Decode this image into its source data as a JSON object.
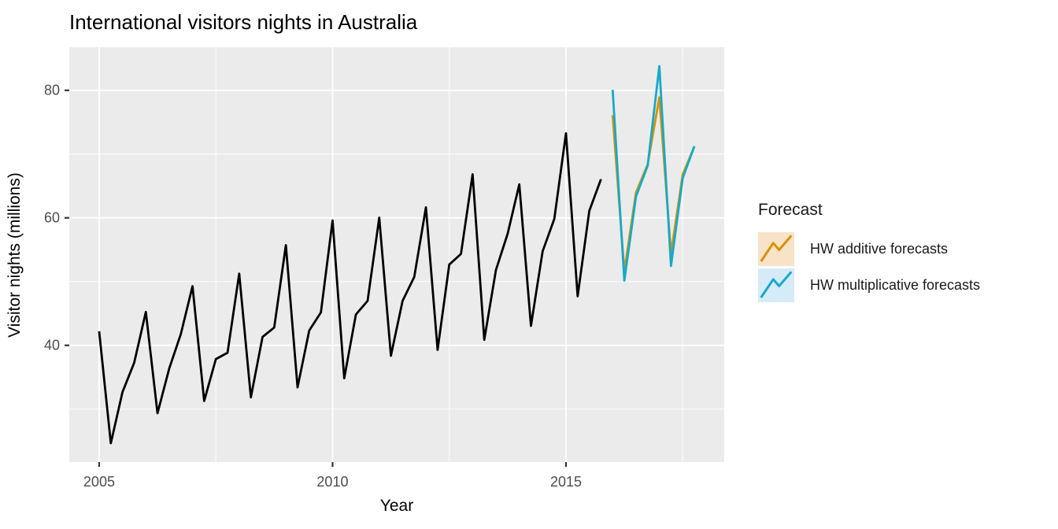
{
  "chart_data": {
    "type": "line",
    "title": "International visitors nights in Australia",
    "xlabel": "Year",
    "ylabel": "Visitor nights (millions)",
    "x_axis": {
      "lim": [
        2004.36,
        2018.39
      ],
      "ticks": [
        2005,
        2010,
        2015
      ],
      "tick_labels": [
        "2005",
        "2010",
        "2015"
      ],
      "minor_ticks": [
        2007.5,
        2012.5,
        2017.5
      ]
    },
    "y_axis": {
      "lim": [
        21.69,
        86.76
      ],
      "ticks": [
        40,
        60,
        80
      ],
      "tick_labels": [
        "40",
        "60",
        "80"
      ],
      "minor_ticks": [
        30,
        50,
        70
      ]
    },
    "grid": "on",
    "legend_position": "right",
    "legend": {
      "title": "Forecast",
      "items": [
        {
          "label": "HW additive forecasts",
          "line_color": "#D59300",
          "fill_color": "#F8E2C8"
        },
        {
          "label": "HW multiplicative forecasts",
          "line_color": "#17A9C8",
          "fill_color": "#D5EBF7"
        }
      ]
    },
    "series": [
      {
        "name": "observed",
        "color": "#000000",
        "x_start": 2005.0,
        "x_step": 0.25,
        "values": [
          42.21,
          24.65,
          32.67,
          37.26,
          45.24,
          29.35,
          36.34,
          41.78,
          49.28,
          31.28,
          37.85,
          38.84,
          51.24,
          31.84,
          41.32,
          42.8,
          55.71,
          33.41,
          42.32,
          45.16,
          59.58,
          34.84,
          44.84,
          46.97,
          60.02,
          38.37,
          46.98,
          50.73,
          61.65,
          39.3,
          52.67,
          54.33,
          66.83,
          40.87,
          51.83,
          57.49,
          65.25,
          43.06,
          54.76,
          59.83,
          73.26,
          47.7,
          61.1,
          66.06
        ]
      },
      {
        "name": "HW additive forecasts",
        "color": "#D59300",
        "x_start": 2016.0,
        "x_step": 0.25,
        "values": [
          76.1,
          51.6,
          63.97,
          68.37,
          78.9,
          54.41,
          66.78,
          71.18
        ]
      },
      {
        "name": "HW multiplicative forecasts",
        "color": "#17A9C8",
        "x_start": 2016.0,
        "x_step": 0.25,
        "values": [
          80.09,
          50.15,
          63.34,
          68.18,
          83.8,
          52.45,
          66.21,
          71.23
        ]
      }
    ]
  },
  "style": {
    "panel_bg": "#EBEBEB",
    "grid_major_color": "#FFFFFF",
    "grid_minor_color": "#FFFFFF",
    "tick_mark_color": "#333333",
    "tick_label_color": "#4D4D4D",
    "title_color": "#1A1A1A",
    "axis_title_color": "#1A1A1A"
  },
  "legend_key_glyph": {
    "points": [
      [
        0.08,
        0.86
      ],
      [
        0.42,
        0.32
      ],
      [
        0.58,
        0.52
      ],
      [
        0.92,
        0.1
      ]
    ]
  }
}
